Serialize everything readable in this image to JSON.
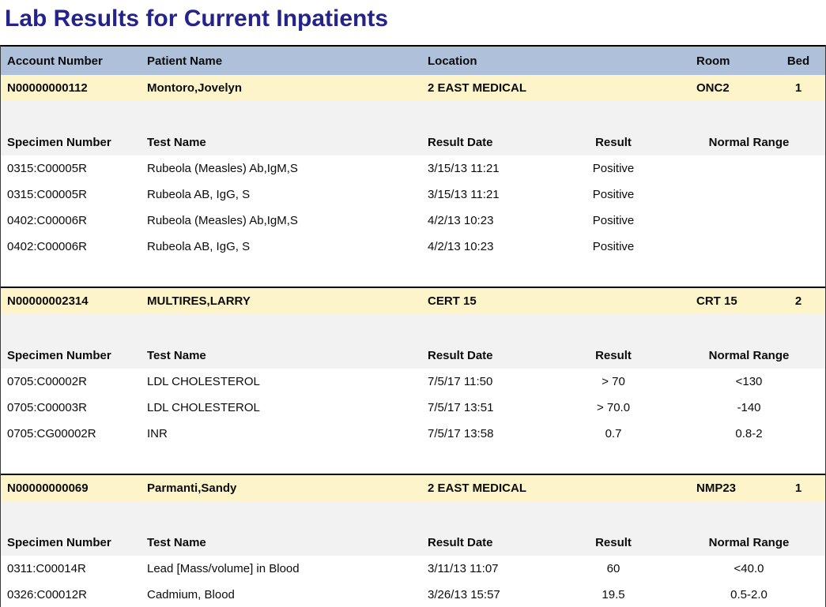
{
  "title": "Lab Results for Current Inpatients",
  "colors": {
    "header_bg": "#aec0da",
    "patient_row_bg": "#fdf5c9",
    "specimen_header_bg": "#f2f2f2",
    "title_color": "#24238c",
    "separator": "#000000"
  },
  "patient_table_headers": {
    "account": "Account Number",
    "name": "Patient Name",
    "location": "Location",
    "room": "Room",
    "bed": "Bed"
  },
  "specimen_table_headers": {
    "specimen": "Specimen Number",
    "test": "Test Name",
    "date": "Result Date",
    "result": "Result",
    "range": "Normal Range"
  },
  "patients": [
    {
      "account": "N00000000112",
      "name": "Montoro,Jovelyn",
      "location": "2 EAST MEDICAL",
      "room": "ONC2",
      "bed": "1",
      "results": [
        {
          "specimen": "0315:C00005R",
          "test": "Rubeola (Measles) Ab,IgM,S",
          "date": "3/15/13 11:21",
          "result": "Positive",
          "range": ""
        },
        {
          "specimen": "0315:C00005R",
          "test": "Rubeola AB, IgG, S",
          "date": "3/15/13 11:21",
          "result": "Positive",
          "range": ""
        },
        {
          "specimen": "0402:C00006R",
          "test": "Rubeola (Measles) Ab,IgM,S",
          "date": "4/2/13 10:23",
          "result": "Positive",
          "range": ""
        },
        {
          "specimen": "0402:C00006R",
          "test": "Rubeola AB, IgG, S",
          "date": "4/2/13 10:23",
          "result": "Positive",
          "range": ""
        }
      ]
    },
    {
      "account": "N00000002314",
      "name": "MULTIRES,LARRY",
      "location": "CERT 15",
      "room": "CRT 15",
      "bed": "2",
      "results": [
        {
          "specimen": "0705:C00002R",
          "test": "LDL CHOLESTEROL",
          "date": "7/5/17 11:50",
          "result": "> 70",
          "range": "<130"
        },
        {
          "specimen": "0705:C00003R",
          "test": "LDL CHOLESTEROL",
          "date": "7/5/17 13:51",
          "result": "> 70.0",
          "range": "-140"
        },
        {
          "specimen": "0705:CG00002R",
          "test": "INR",
          "date": "7/5/17 13:58",
          "result": "0.7",
          "range": "0.8-2"
        }
      ]
    },
    {
      "account": "N00000000069",
      "name": "Parmanti,Sandy",
      "location": "2 EAST MEDICAL",
      "room": "NMP23",
      "bed": "1",
      "results": [
        {
          "specimen": "0311:C00014R",
          "test": "Lead [Mass/volume] in Blood",
          "date": "3/11/13 11:07",
          "result": "60",
          "range": "<40.0"
        },
        {
          "specimen": "0326:C00012R",
          "test": "Cadmium, Blood",
          "date": "3/26/13 15:57",
          "result": "19.5",
          "range": "0.5-2.0"
        }
      ]
    }
  ]
}
